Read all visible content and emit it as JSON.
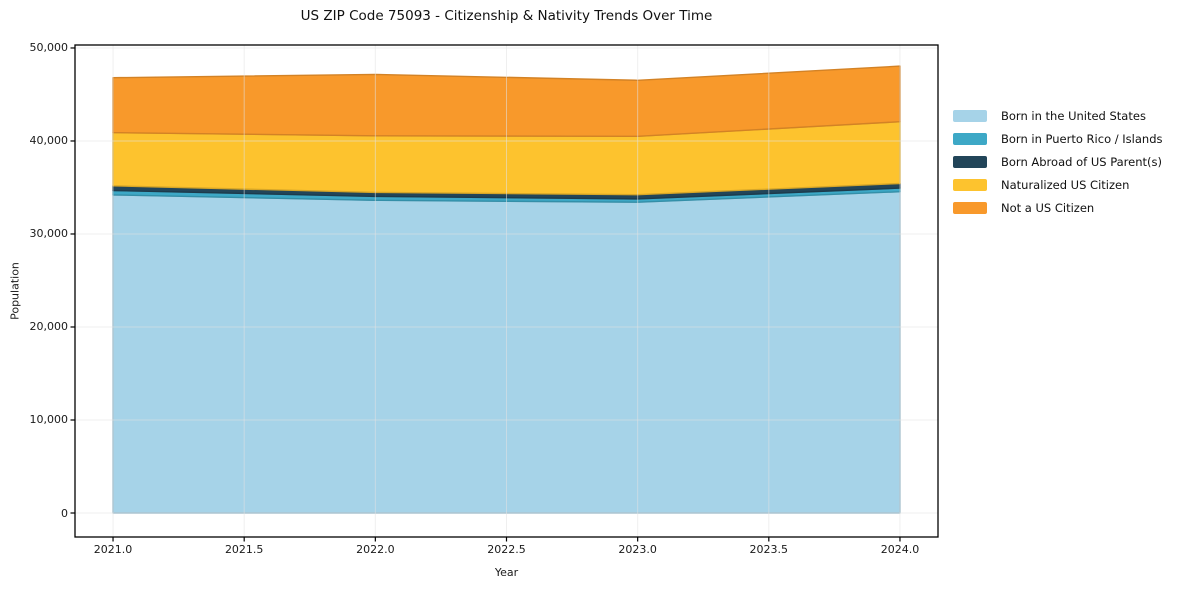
{
  "title": "US ZIP Code 75093 - Citizenship & Nativity Trends Over Time",
  "chart_data": {
    "type": "area",
    "stacked": true,
    "title": "US ZIP Code 75093 - Citizenship & Nativity Trends Over Time",
    "xlabel": "Year",
    "ylabel": "Population",
    "x": [
      2021,
      2022,
      2023,
      2024
    ],
    "series": [
      {
        "name": "Born in the United States",
        "color": "#a6d3e8",
        "values": [
          34200,
          33620,
          33420,
          34550
        ]
      },
      {
        "name": "Born in Puerto Rico / Islands",
        "color": "#3da8c6",
        "values": [
          480,
          420,
          350,
          380
        ]
      },
      {
        "name": "Born Abroad of US Parent(s)",
        "color": "#224559",
        "values": [
          500,
          430,
          450,
          500
        ]
      },
      {
        "name": "Naturalized US Citizen",
        "color": "#fdc32e",
        "values": [
          5720,
          6090,
          6280,
          6640
        ]
      },
      {
        "name": "Not a US Citizen",
        "color": "#f8992b",
        "values": [
          5900,
          6600,
          6020,
          5980
        ]
      }
    ],
    "totals": [
      46800,
      47160,
      46520,
      48050
    ],
    "xlim": [
      2020.855,
      2024.145
    ],
    "ylim": [
      -2580,
      50320
    ],
    "x_ticks": {
      "values": [
        2021.0,
        2021.5,
        2022.0,
        2022.5,
        2023.0,
        2023.5,
        2024.0
      ],
      "labels": [
        "2021.0",
        "2021.5",
        "2022.0",
        "2022.5",
        "2023.0",
        "2023.5",
        "2024.0"
      ]
    },
    "y_ticks": {
      "values": [
        0,
        10000,
        20000,
        30000,
        40000,
        50000
      ],
      "labels": [
        "0",
        "10,000",
        "20,000",
        "30,000",
        "40,000",
        "50,000"
      ]
    },
    "grid": true,
    "legend_position": "right-outside",
    "colors": {
      "grid": "#e3e3e3",
      "frame": "#000000",
      "background": "#ffffff"
    }
  }
}
